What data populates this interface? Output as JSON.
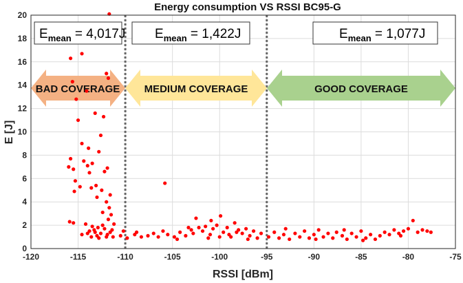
{
  "chart_data": {
    "type": "scatter",
    "title": "Energy consumption VS RSSI BC95-G",
    "x_label": "RSSI [dBm]",
    "y_label": "E [J]",
    "xlim": [
      -120,
      -75
    ],
    "xticks": [
      -120,
      -115,
      -110,
      -105,
      -100,
      -95,
      -90,
      -85,
      -80,
      -75
    ],
    "ylim": [
      0,
      20
    ],
    "yticks": [
      0,
      2,
      4,
      6,
      8,
      10,
      12,
      14,
      16,
      18,
      20
    ],
    "grid": true,
    "color": "#ff0000",
    "vlines": [
      -110,
      -95
    ],
    "annotations": [
      {
        "symbol": "E",
        "subscript": "mean",
        "text": " = 4,017J"
      },
      {
        "symbol": "E",
        "subscript": "mean",
        "text": " = 1,422J"
      },
      {
        "symbol": "E",
        "subscript": "mean",
        "text": " = 1,077J"
      }
    ],
    "regions": [
      "BAD COVERAGE",
      "MEDIUM COVERAGE",
      "GOOD COVERAGE"
    ],
    "x": [
      -111.7,
      -115.3,
      -114.6,
      -115.8,
      -112,
      -115.6,
      -111.8,
      -114.1,
      -115.2,
      -113.2,
      -112.3,
      -115,
      -112.6,
      -114.6,
      -113.9,
      -112.8,
      -115.8,
      -114.4,
      -114,
      -113.5,
      -116,
      -115.5,
      -113.8,
      -112.2,
      -111.9,
      -115.3,
      -114.8,
      -113.6,
      -113.1,
      -112.5,
      -115.4,
      -111.6,
      -113,
      -112,
      -111.7,
      -112.4,
      -115.9,
      -115.5,
      -111.5,
      -111.8,
      -114.2,
      -113.5,
      -112.9,
      -112.2,
      -111.4,
      -113.8,
      -113.2,
      -112.6,
      -114.6,
      -111.9,
      -113,
      -112,
      -111.3,
      -113.6,
      -112.8,
      -111.6,
      -114,
      -112.4,
      -111.2,
      -113.3,
      -110.5,
      -109.8,
      -109,
      -108.3,
      -107.6,
      -107,
      -106.5,
      -105.8,
      -105.5,
      -104.8,
      -104.2,
      -103.6,
      -103,
      -102.5,
      -102.2,
      -101.8,
      -101.5,
      -101,
      -100.7,
      -100.3,
      -99.9,
      -99.6,
      -99.2,
      -98.8,
      -98.4,
      -98,
      -97.6,
      -97.2,
      -96.8,
      -96.4,
      -96,
      -95.6,
      -103.3,
      -102.8,
      -100.9,
      -101.2,
      -99,
      -98.2,
      -97,
      -106,
      -108.8,
      -110.2,
      -104.5,
      -100,
      -94.8,
      -94.2,
      -93.7,
      -93.2,
      -92.6,
      -92,
      -91.5,
      -91,
      -90.5,
      -90,
      -89.5,
      -89,
      -88.5,
      -88,
      -87.6,
      -87,
      -86.5,
      -86,
      -85.5,
      -85,
      -84.5,
      -84,
      -83.5,
      -83,
      -82.5,
      -82,
      -81.5,
      -81,
      -80.5,
      -80,
      -79.5,
      -79,
      -78.5,
      -78,
      -77.6,
      -93,
      -89.8,
      -86.8,
      -84.8,
      -80.8
    ],
    "values": [
      20.1,
      18.1,
      16.7,
      16.3,
      15,
      14.3,
      14.6,
      13.5,
      12.8,
      11.6,
      11.3,
      11,
      9.7,
      9,
      8.6,
      8.3,
      7.7,
      7.5,
      7.1,
      7.3,
      7,
      6.8,
      6.5,
      6.6,
      6.9,
      5.8,
      5.3,
      5.2,
      5.4,
      5,
      4.9,
      4.6,
      4.4,
      4,
      3.5,
      3.1,
      2.3,
      2.2,
      2.9,
      2.5,
      2.1,
      1.9,
      1.8,
      1.7,
      1.6,
      1.5,
      1.4,
      1.3,
      1.2,
      1.2,
      1.1,
      1,
      1,
      1,
      0.9,
      1.4,
      1.3,
      2,
      2.1,
      1.6,
      1.1,
      0.9,
      1.2,
      1,
      1.1,
      1.3,
      1,
      5.6,
      1.2,
      1,
      1.4,
      1.1,
      1.6,
      2.6,
      1.8,
      1.5,
      1.9,
      1.2,
      1.7,
      2,
      2.8,
      1.4,
      1.8,
      1,
      2.2,
      1.6,
      1.3,
      1.7,
      1.1,
      1.5,
      0.9,
      1.3,
      1.8,
      1.3,
      2.4,
      0.9,
      1.2,
      1.4,
      0.8,
      1.5,
      1.4,
      1.5,
      0.8,
      1,
      1,
      1.4,
      0.9,
      1.2,
      0.8,
      1.3,
      1,
      1.5,
      0.9,
      1.2,
      1.6,
      1,
      1.3,
      0.9,
      1.4,
      1.1,
      0.8,
      1.3,
      1,
      1.5,
      0.9,
      1.2,
      0.8,
      1.1,
      1.4,
      1.2,
      1.6,
      1.3,
      1.5,
      1.7,
      2.4,
      1.4,
      1.6,
      1.5,
      1.4,
      1.7,
      0.8,
      1.6,
      0.7,
      1.1
    ]
  }
}
